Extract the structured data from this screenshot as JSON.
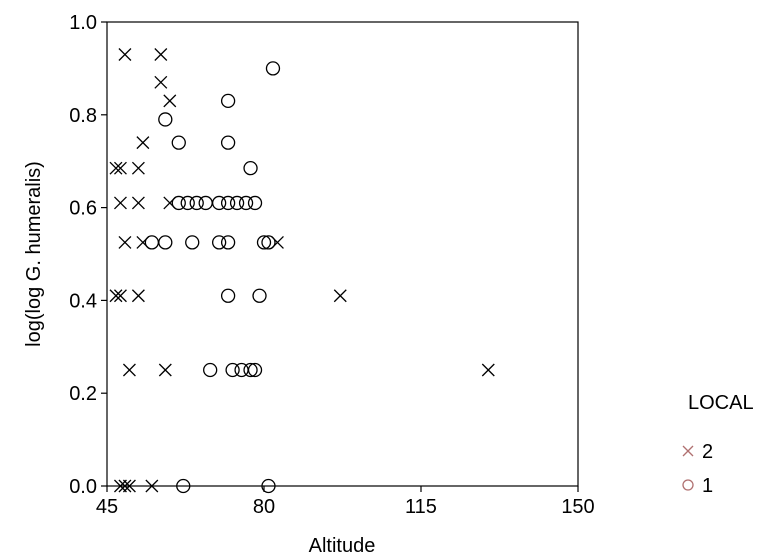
{
  "chart_data": {
    "type": "scatter",
    "title": "",
    "xlabel": "Altitude",
    "ylabel": "log(log G. humeralis)",
    "xlim": [
      45,
      150
    ],
    "ylim": [
      0.0,
      1.0
    ],
    "xticks": [
      45,
      80,
      115,
      150
    ],
    "yticks": [
      0.0,
      0.2,
      0.4,
      0.6,
      0.8,
      1.0
    ],
    "xtick_labels": [
      "45",
      "80",
      "115",
      "150"
    ],
    "ytick_labels": [
      "0.0",
      "0.2",
      "0.4",
      "0.6",
      "0.8",
      "1.0"
    ],
    "grid": false,
    "legend": {
      "title": "LOCAL",
      "placement": "right"
    },
    "series": [
      {
        "name": "2",
        "marker": "x",
        "color": "#000000",
        "legend_color": "#b07070",
        "points": [
          [
            49,
            0.93
          ],
          [
            57,
            0.93
          ],
          [
            57,
            0.87
          ],
          [
            59,
            0.83
          ],
          [
            47,
            0.685
          ],
          [
            48,
            0.685
          ],
          [
            52,
            0.685
          ],
          [
            53,
            0.74
          ],
          [
            48,
            0.61
          ],
          [
            52,
            0.61
          ],
          [
            59,
            0.61
          ],
          [
            49,
            0.525
          ],
          [
            53,
            0.525
          ],
          [
            83,
            0.525
          ],
          [
            47,
            0.41
          ],
          [
            48,
            0.41
          ],
          [
            52,
            0.41
          ],
          [
            97,
            0.41
          ],
          [
            50,
            0.25
          ],
          [
            58,
            0.25
          ],
          [
            130,
            0.25
          ],
          [
            48,
            0.0
          ],
          [
            49,
            0.0
          ],
          [
            50,
            0.0
          ],
          [
            55,
            0.0
          ]
        ]
      },
      {
        "name": "1",
        "marker": "o",
        "color": "#000000",
        "legend_color": "#b07070",
        "points": [
          [
            82,
            0.9
          ],
          [
            72,
            0.83
          ],
          [
            58,
            0.79
          ],
          [
            61,
            0.74
          ],
          [
            72,
            0.74
          ],
          [
            77,
            0.685
          ],
          [
            61,
            0.61
          ],
          [
            63,
            0.61
          ],
          [
            65,
            0.61
          ],
          [
            67,
            0.61
          ],
          [
            70,
            0.61
          ],
          [
            72,
            0.61
          ],
          [
            74,
            0.61
          ],
          [
            76,
            0.61
          ],
          [
            78,
            0.61
          ],
          [
            55,
            0.525
          ],
          [
            58,
            0.525
          ],
          [
            64,
            0.525
          ],
          [
            70,
            0.525
          ],
          [
            72,
            0.525
          ],
          [
            80,
            0.525
          ],
          [
            81,
            0.525
          ],
          [
            72,
            0.41
          ],
          [
            79,
            0.41
          ],
          [
            68,
            0.25
          ],
          [
            73,
            0.25
          ],
          [
            75,
            0.25
          ],
          [
            77,
            0.25
          ],
          [
            78,
            0.25
          ],
          [
            62,
            0.0
          ],
          [
            81,
            0.0
          ]
        ]
      }
    ]
  }
}
